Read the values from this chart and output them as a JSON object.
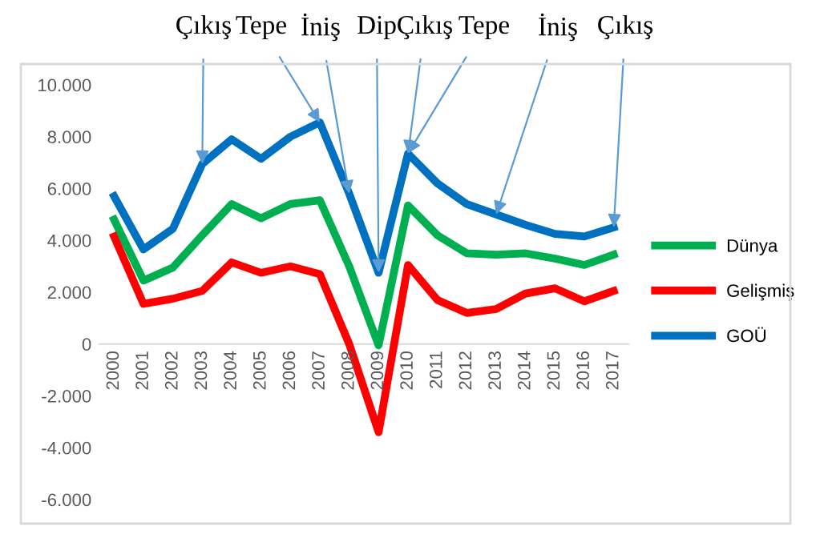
{
  "chart_data": {
    "type": "line",
    "categories": [
      "2000",
      "2001",
      "2002",
      "2003",
      "2004",
      "2005",
      "2006",
      "2007",
      "2008",
      "2009",
      "2010",
      "2011",
      "2012",
      "2013",
      "2014",
      "2015",
      "2016",
      "2017"
    ],
    "series": [
      {
        "name": "Dünya",
        "color": "#00b050",
        "values": [
          4800,
          2450,
          2950,
          4200,
          5400,
          4850,
          5400,
          5550,
          3000,
          -50,
          5350,
          4200,
          3500,
          3450,
          3500,
          3300,
          3050,
          3450
        ]
      },
      {
        "name": "Gelişmiş",
        "color": "#ff0000",
        "values": [
          4150,
          1550,
          1750,
          2050,
          3150,
          2750,
          3000,
          2700,
          0,
          -3400,
          3050,
          1700,
          1200,
          1350,
          1950,
          2150,
          1650,
          2050
        ]
      },
      {
        "name": "GOÜ",
        "color": "#0070c0",
        "values": [
          5700,
          3650,
          4450,
          6950,
          7900,
          7150,
          8000,
          8550,
          5800,
          2750,
          7350,
          6200,
          5400,
          5000,
          4600,
          4250,
          4150,
          4500
        ]
      }
    ],
    "ylim": [
      -6000,
      10000
    ],
    "yticks": [
      {
        "value": -6000,
        "label": "-6.000"
      },
      {
        "value": -4000,
        "label": "-4.000"
      },
      {
        "value": -2000,
        "label": "-2.000"
      },
      0,
      {
        "value": 2000,
        "label": "2.000"
      },
      {
        "value": 4000,
        "label": "4.000"
      },
      {
        "value": 6000,
        "label": "6.000"
      },
      {
        "value": 8000,
        "label": "8.000"
      },
      {
        "value": 10000,
        "label": "10.000"
      }
    ],
    "annotations": [
      {
        "text": "Çıkış",
        "x": "2003",
        "y": 6950
      },
      {
        "text": "Tepe",
        "x": "2007",
        "y": 8550
      },
      {
        "text": "İniş",
        "x": "2008",
        "y": 5800
      },
      {
        "text": "Dip",
        "x": "2009",
        "y": 2750
      },
      {
        "text": "Çıkış",
        "x": "2010",
        "y": 7350
      },
      {
        "text": "Tepe",
        "x": "2010",
        "y": 7350
      },
      {
        "text": "İniş",
        "x": "2013",
        "y": 5000
      },
      {
        "text": "Çıkış",
        "x": "2017",
        "y": 4500
      }
    ],
    "legend": "right",
    "grid": false,
    "marker": "none",
    "line_style": "solid"
  }
}
